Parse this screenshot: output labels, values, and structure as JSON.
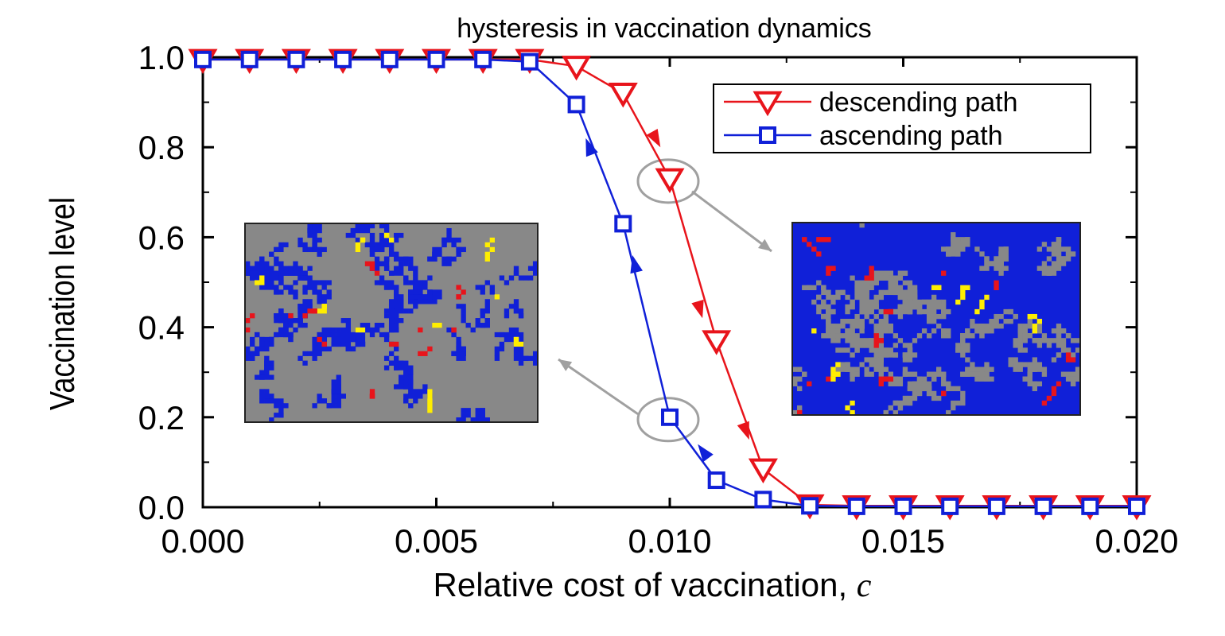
{
  "chart_data": {
    "type": "line",
    "title": "hysteresis in vaccination dynamics",
    "xlabel": "Relative cost of vaccination,",
    "xlabel_symbol": "c",
    "ylabel": "Vaccination level",
    "xlim": [
      0,
      0.02
    ],
    "ylim": [
      0,
      1.0
    ],
    "xticks": [
      "0.000",
      "0.005",
      "0.010",
      "0.015",
      "0.020"
    ],
    "xtick_values": [
      0,
      0.005,
      0.01,
      0.015,
      0.02
    ],
    "yticks": [
      "0.0",
      "0.2",
      "0.4",
      "0.6",
      "0.8",
      "1.0"
    ],
    "ytick_values": [
      0,
      0.2,
      0.4,
      0.6,
      0.8,
      1.0
    ],
    "legend_position": "top-right",
    "series": [
      {
        "name": "descending path",
        "color": "#e8141b",
        "marker": "triangle-down",
        "x": [
          0,
          0.001,
          0.002,
          0.003,
          0.004,
          0.005,
          0.006,
          0.007,
          0.008,
          0.009,
          0.01,
          0.011,
          0.012,
          0.013,
          0.014,
          0.015,
          0.016,
          0.017,
          0.018,
          0.019,
          0.02
        ],
        "y": [
          0.995,
          0.995,
          0.995,
          0.995,
          0.995,
          0.995,
          0.995,
          0.995,
          0.98,
          0.92,
          0.73,
          0.37,
          0.085,
          0.005,
          0.003,
          0.003,
          0.003,
          0.003,
          0.003,
          0.003,
          0.003
        ],
        "arrows": [
          [
            0.0098,
            0.8
          ],
          [
            0.0107,
            0.42
          ],
          [
            0.0117,
            0.15
          ]
        ]
      },
      {
        "name": "ascending path",
        "color": "#1020d8",
        "marker": "square",
        "x": [
          0,
          0.001,
          0.002,
          0.003,
          0.004,
          0.005,
          0.006,
          0.007,
          0.008,
          0.009,
          0.01,
          0.011,
          0.012,
          0.013,
          0.014,
          0.015,
          0.016,
          0.017,
          0.018,
          0.019,
          0.02
        ],
        "y": [
          0.995,
          0.995,
          0.995,
          0.995,
          0.995,
          0.995,
          0.995,
          0.99,
          0.895,
          0.63,
          0.2,
          0.06,
          0.017,
          0.003,
          0.002,
          0.002,
          0.002,
          0.002,
          0.002,
          0.002,
          0.002
        ],
        "arrows": [
          [
            0.0106,
            0.14
          ],
          [
            0.0092,
            0.56
          ],
          [
            0.0082,
            0.82
          ]
        ]
      }
    ],
    "highlighted_points": [
      {
        "x": 0.01,
        "y": 0.73
      },
      {
        "x": 0.01,
        "y": 0.2
      }
    ],
    "insets": [
      {
        "name": "low-vaccination-lattice",
        "links_to": {
          "x": 0.01,
          "y": 0.2
        },
        "colors": [
          "#888888",
          "#1020d8",
          "#e8141b",
          "#ffee00"
        ],
        "dominant": "#888888"
      },
      {
        "name": "high-vaccination-lattice",
        "links_to": {
          "x": 0.01,
          "y": 0.73
        },
        "colors": [
          "#888888",
          "#1020d8",
          "#e8141b",
          "#ffee00"
        ],
        "dominant": "#1020d8"
      }
    ]
  }
}
